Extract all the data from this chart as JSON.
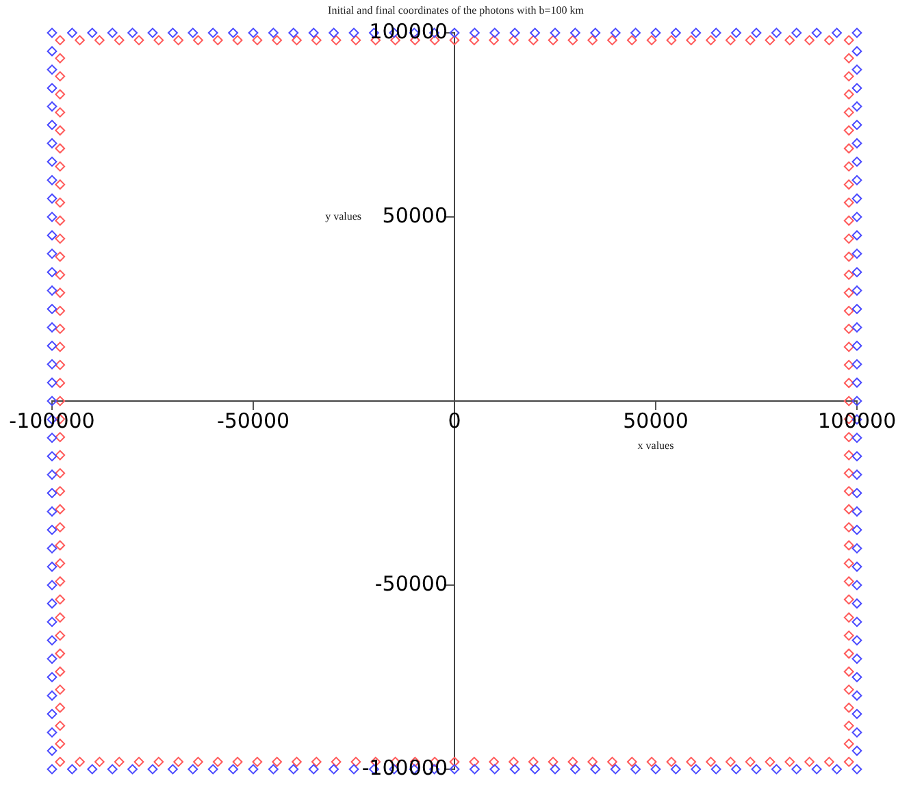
{
  "chart_data": {
    "type": "scatter",
    "title": "Initial and final coordinates of the photons with b=100 km",
    "xlabel": "x values",
    "ylabel": "y values",
    "xlim": [
      -100000,
      100000
    ],
    "ylim": [
      -100000,
      100000
    ],
    "xticks": [
      -100000,
      -50000,
      0,
      50000,
      100000
    ],
    "yticks": [
      -100000,
      -50000,
      50000,
      100000
    ],
    "grid": false,
    "legend": false,
    "marker": "diamond",
    "series": [
      {
        "color": "#4a4aff",
        "x": [
          -100000,
          -95000,
          -90000,
          -85000,
          -80000,
          -75000,
          -70000,
          -65000,
          -60000,
          -55000,
          -50000,
          -45000,
          -40000,
          -35000,
          -30000,
          -25000,
          -20000,
          -15000,
          -10000,
          -5000,
          0,
          5000,
          10000,
          15000,
          20000,
          25000,
          30000,
          35000,
          40000,
          45000,
          50000,
          55000,
          60000,
          65000,
          70000,
          75000,
          80000,
          85000,
          90000,
          95000,
          100000,
          100000,
          100000,
          100000,
          100000,
          100000,
          100000,
          100000,
          100000,
          100000,
          100000,
          100000,
          100000,
          100000,
          100000,
          100000,
          100000,
          100000,
          100000,
          100000,
          100000,
          100000,
          100000,
          100000,
          100000,
          100000,
          100000,
          100000,
          100000,
          100000,
          100000,
          100000,
          100000,
          100000,
          100000,
          100000,
          100000,
          100000,
          100000,
          100000,
          100000,
          95000,
          90000,
          85000,
          80000,
          75000,
          70000,
          65000,
          60000,
          55000,
          50000,
          45000,
          40000,
          35000,
          30000,
          25000,
          20000,
          15000,
          10000,
          5000,
          0,
          -5000,
          -10000,
          -15000,
          -20000,
          -25000,
          -30000,
          -35000,
          -40000,
          -45000,
          -50000,
          -55000,
          -60000,
          -65000,
          -70000,
          -75000,
          -80000,
          -85000,
          -90000,
          -95000,
          -100000,
          -100000,
          -100000,
          -100000,
          -100000,
          -100000,
          -100000,
          -100000,
          -100000,
          -100000,
          -100000,
          -100000,
          -100000,
          -100000,
          -100000,
          -100000,
          -100000,
          -100000,
          -100000,
          -100000,
          -100000,
          -100000,
          -100000,
          -100000,
          -100000,
          -100000,
          -100000,
          -100000,
          -100000,
          -100000,
          -100000,
          -100000,
          -100000,
          -100000,
          -100000,
          -100000,
          -100000,
          -100000,
          -100000,
          -100000
        ],
        "values": [
          100000,
          100000,
          100000,
          100000,
          100000,
          100000,
          100000,
          100000,
          100000,
          100000,
          100000,
          100000,
          100000,
          100000,
          100000,
          100000,
          100000,
          100000,
          100000,
          100000,
          100000,
          100000,
          100000,
          100000,
          100000,
          100000,
          100000,
          100000,
          100000,
          100000,
          100000,
          100000,
          100000,
          100000,
          100000,
          100000,
          100000,
          100000,
          100000,
          100000,
          100000,
          95000,
          90000,
          85000,
          80000,
          75000,
          70000,
          65000,
          60000,
          55000,
          50000,
          45000,
          40000,
          35000,
          30000,
          25000,
          20000,
          15000,
          10000,
          5000,
          0,
          -5000,
          -10000,
          -15000,
          -20000,
          -25000,
          -30000,
          -35000,
          -40000,
          -45000,
          -50000,
          -55000,
          -60000,
          -65000,
          -70000,
          -75000,
          -80000,
          -85000,
          -90000,
          -95000,
          -100000,
          -100000,
          -100000,
          -100000,
          -100000,
          -100000,
          -100000,
          -100000,
          -100000,
          -100000,
          -100000,
          -100000,
          -100000,
          -100000,
          -100000,
          -100000,
          -100000,
          -100000,
          -100000,
          -100000,
          -100000,
          -100000,
          -100000,
          -100000,
          -100000,
          -100000,
          -100000,
          -100000,
          -100000,
          -100000,
          -100000,
          -100000,
          -100000,
          -100000,
          -100000,
          -100000,
          -100000,
          -100000,
          -100000,
          -100000,
          -100000,
          -95000,
          -90000,
          -85000,
          -80000,
          -75000,
          -70000,
          -65000,
          -60000,
          -55000,
          -50000,
          -45000,
          -40000,
          -35000,
          -30000,
          -25000,
          -20000,
          -15000,
          -10000,
          -5000,
          0,
          5000,
          10000,
          15000,
          20000,
          25000,
          30000,
          35000,
          40000,
          45000,
          50000,
          55000,
          60000,
          65000,
          70000,
          75000,
          80000,
          85000,
          90000,
          95000
        ]
      },
      {
        "color": "#ff5a5a",
        "x": [
          -98000,
          -93100,
          -88200,
          -83300,
          -78400,
          -73500,
          -68600,
          -63700,
          -58800,
          -53900,
          -49000,
          -44100,
          -39200,
          -34300,
          -29400,
          -24500,
          -19600,
          -14700,
          -9800,
          -4900,
          0,
          4900,
          9800,
          14700,
          19600,
          24500,
          29400,
          34300,
          39200,
          44100,
          49000,
          53900,
          58800,
          63700,
          68600,
          73500,
          78400,
          83300,
          88200,
          93100,
          98000,
          98000,
          98000,
          98000,
          98000,
          98000,
          98000,
          98000,
          98000,
          98000,
          98000,
          98000,
          98000,
          98000,
          98000,
          98000,
          98000,
          98000,
          98000,
          98000,
          98000,
          98000,
          98000,
          98000,
          98000,
          98000,
          98000,
          98000,
          98000,
          98000,
          98000,
          98000,
          98000,
          98000,
          98000,
          98000,
          98000,
          98000,
          98000,
          98000,
          98000,
          93100,
          88200,
          83300,
          78400,
          73500,
          68600,
          63700,
          58800,
          53900,
          49000,
          44100,
          39200,
          34300,
          29400,
          24500,
          19600,
          14700,
          9800,
          4900,
          0,
          -4900,
          -9800,
          -14700,
          -19600,
          -24500,
          -29400,
          -34300,
          -39200,
          -44100,
          -49000,
          -53900,
          -58800,
          -63700,
          -68600,
          -73500,
          -78400,
          -83300,
          -88200,
          -93100,
          -98000,
          -98000,
          -98000,
          -98000,
          -98000,
          -98000,
          -98000,
          -98000,
          -98000,
          -98000,
          -98000,
          -98000,
          -98000,
          -98000,
          -98000,
          -98000,
          -98000,
          -98000,
          -98000,
          -98000,
          -98000,
          -98000,
          -98000,
          -98000,
          -98000,
          -98000,
          -98000,
          -98000,
          -98000,
          -98000,
          -98000,
          -98000,
          -98000,
          -98000,
          -98000,
          -98000,
          -98000,
          -98000,
          -98000,
          -98000
        ],
        "values": [
          98000,
          98000,
          98000,
          98000,
          98000,
          98000,
          98000,
          98000,
          98000,
          98000,
          98000,
          98000,
          98000,
          98000,
          98000,
          98000,
          98000,
          98000,
          98000,
          98000,
          98000,
          98000,
          98000,
          98000,
          98000,
          98000,
          98000,
          98000,
          98000,
          98000,
          98000,
          98000,
          98000,
          98000,
          98000,
          98000,
          98000,
          98000,
          98000,
          98000,
          98000,
          93100,
          88200,
          83300,
          78400,
          73500,
          68600,
          63700,
          58800,
          53900,
          49000,
          44100,
          39200,
          34300,
          29400,
          24500,
          19600,
          14700,
          9800,
          4900,
          0,
          -4900,
          -9800,
          -14700,
          -19600,
          -24500,
          -29400,
          -34300,
          -39200,
          -44100,
          -49000,
          -53900,
          -58800,
          -63700,
          -68600,
          -73500,
          -78400,
          -83300,
          -88200,
          -93100,
          -98000,
          -98000,
          -98000,
          -98000,
          -98000,
          -98000,
          -98000,
          -98000,
          -98000,
          -98000,
          -98000,
          -98000,
          -98000,
          -98000,
          -98000,
          -98000,
          -98000,
          -98000,
          -98000,
          -98000,
          -98000,
          -98000,
          -98000,
          -98000,
          -98000,
          -98000,
          -98000,
          -98000,
          -98000,
          -98000,
          -98000,
          -98000,
          -98000,
          -98000,
          -98000,
          -98000,
          -98000,
          -98000,
          -98000,
          -98000,
          -98000,
          -93100,
          -88200,
          -83300,
          -78400,
          -73500,
          -68600,
          -63700,
          -58800,
          -53900,
          -49000,
          -44100,
          -39200,
          -34300,
          -29400,
          -24500,
          -19600,
          -14700,
          -9800,
          -4900,
          0,
          4900,
          9800,
          14700,
          19600,
          24500,
          29400,
          34300,
          39200,
          44100,
          49000,
          53900,
          58800,
          63700,
          68600,
          73500,
          78400,
          83300,
          88200,
          93100
        ]
      }
    ]
  }
}
